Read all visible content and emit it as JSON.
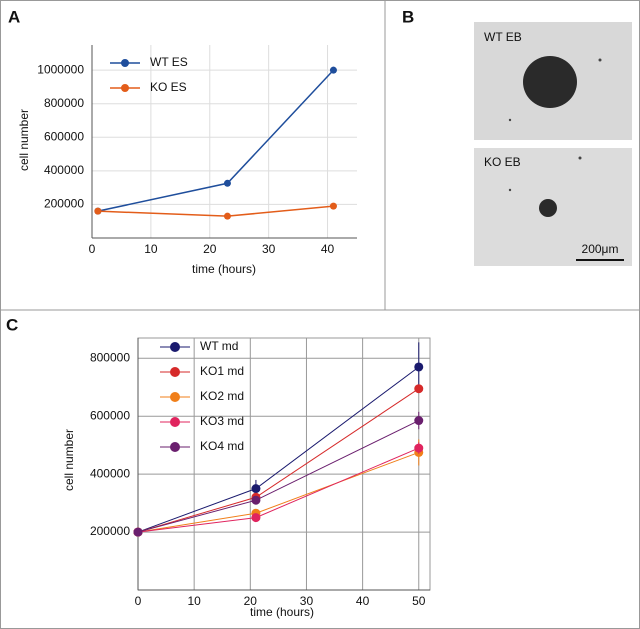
{
  "panels": {
    "a": "A",
    "b": "B",
    "c": "C"
  },
  "images": [
    {
      "label": "WT EB"
    },
    {
      "label": "KO EB"
    }
  ],
  "scale_bar": "200μm",
  "chart_data": [
    {
      "type": "line",
      "x_label": "time (hours)",
      "y_label": "cell number",
      "xlim": [
        0,
        45
      ],
      "xticks": [
        0,
        10,
        20,
        30,
        40
      ],
      "ylim": [
        0,
        1150000
      ],
      "yticks": [
        200000,
        400000,
        600000,
        800000,
        1000000
      ],
      "grid": true,
      "legend": "top-left",
      "series": [
        {
          "name": "WT ES",
          "color": "#1f4e9c",
          "x": [
            1,
            23,
            41
          ],
          "values": [
            160000,
            326000,
            1000000
          ],
          "errors": [
            8000,
            15000,
            20000
          ]
        },
        {
          "name": "KO ES",
          "color": "#e35d1a",
          "x": [
            1,
            23,
            41
          ],
          "values": [
            160000,
            130000,
            190000
          ],
          "errors": [
            8000,
            6000,
            8000
          ]
        }
      ]
    },
    {
      "type": "line",
      "x_label": "time (hours)",
      "y_label": "cell number",
      "xlim": [
        0,
        52
      ],
      "xticks": [
        0,
        10,
        20,
        30,
        40,
        50
      ],
      "ylim": [
        0,
        870000
      ],
      "yticks": [
        200000,
        400000,
        600000,
        800000
      ],
      "grid": true,
      "legend": "top-left",
      "series": [
        {
          "name": "WT md",
          "color": "#1a1a6e",
          "x": [
            0,
            21,
            50
          ],
          "values": [
            200000,
            350000,
            770000
          ],
          "errors": [
            0,
            30000,
            85000
          ]
        },
        {
          "name": "KO1 md",
          "color": "#d62a2a",
          "x": [
            0,
            21,
            50
          ],
          "values": [
            200000,
            320000,
            695000
          ],
          "errors": [
            0,
            15000,
            12000
          ]
        },
        {
          "name": "KO2 md",
          "color": "#f07f1a",
          "x": [
            0,
            21,
            50
          ],
          "values": [
            200000,
            265000,
            475000
          ],
          "errors": [
            0,
            12000,
            45000
          ]
        },
        {
          "name": "KO3 md",
          "color": "#e0245e",
          "x": [
            0,
            21,
            50
          ],
          "values": [
            200000,
            250000,
            490000
          ],
          "errors": [
            0,
            10000,
            20000
          ]
        },
        {
          "name": "KO4 md",
          "color": "#6a1f6e",
          "x": [
            0,
            21,
            50
          ],
          "values": [
            200000,
            310000,
            585000
          ],
          "errors": [
            0,
            15000,
            30000
          ]
        }
      ]
    }
  ]
}
